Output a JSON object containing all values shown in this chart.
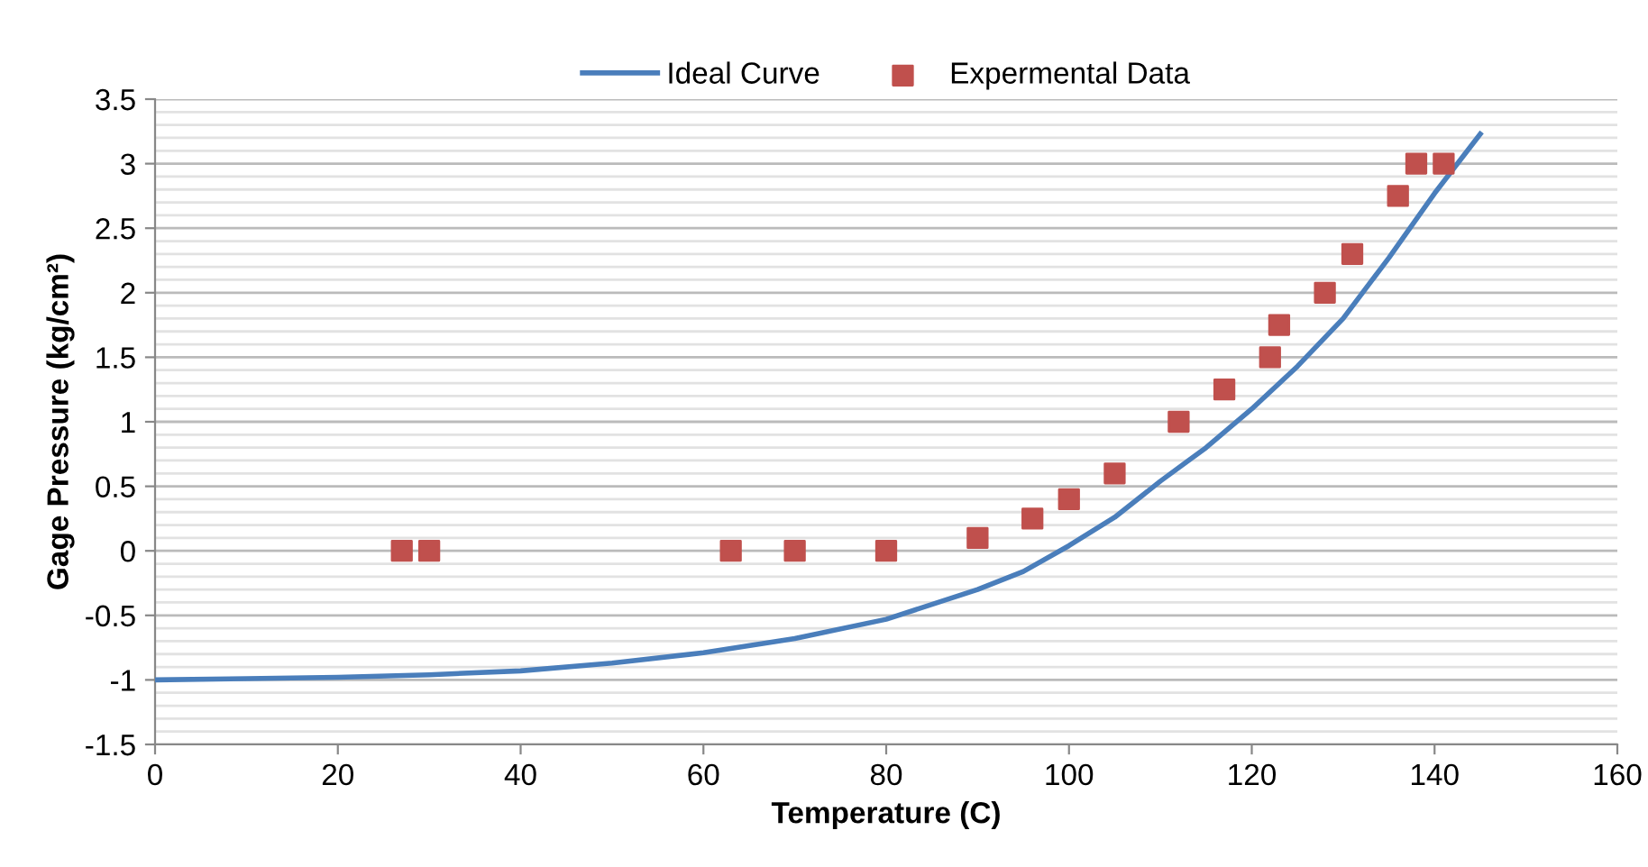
{
  "chart_data": {
    "type": "scatter",
    "xlabel": "Temperature (C)",
    "ylabel": "Gage Pressure (kg/cm²)",
    "xlim": [
      0,
      160
    ],
    "xticks": [
      0,
      20,
      40,
      60,
      80,
      100,
      120,
      140,
      160
    ],
    "ylim": [
      -1.5,
      3.5
    ],
    "yticks": [
      -1.5,
      -1,
      -0.5,
      0,
      0.5,
      1,
      1.5,
      2,
      2.5,
      3,
      3.5
    ],
    "grid": "y",
    "legend": "top",
    "series": [
      {
        "name": "Ideal Curve",
        "type": "line",
        "color": "#4a7ebb",
        "marker": "none",
        "line_style": "solid",
        "x": [
          0,
          10,
          20,
          30,
          40,
          50,
          60,
          70,
          80,
          90,
          95,
          100,
          105,
          110,
          115,
          120,
          125,
          130,
          135,
          140,
          145
        ],
        "values": [
          -1,
          -0.99,
          -0.98,
          -0.96,
          -0.93,
          -0.87,
          -0.79,
          -0.68,
          -0.53,
          -0.3,
          -0.16,
          0.04,
          0.26,
          0.54,
          0.8,
          1.1,
          1.43,
          1.8,
          2.27,
          2.77,
          3.23
        ]
      },
      {
        "name": "Expermental Data",
        "color": "#c0504d",
        "marker": "square",
        "x": [
          27,
          30,
          63,
          70,
          80,
          90,
          96,
          100,
          105,
          112,
          117,
          122,
          123,
          128,
          131,
          136,
          138,
          141
        ],
        "values": [
          0,
          0,
          0,
          0,
          0,
          0.1,
          0.25,
          0.4,
          0.6,
          1.0,
          1.25,
          1.5,
          1.75,
          2.0,
          2.3,
          2.75,
          3.0,
          3.0
        ]
      }
    ]
  }
}
